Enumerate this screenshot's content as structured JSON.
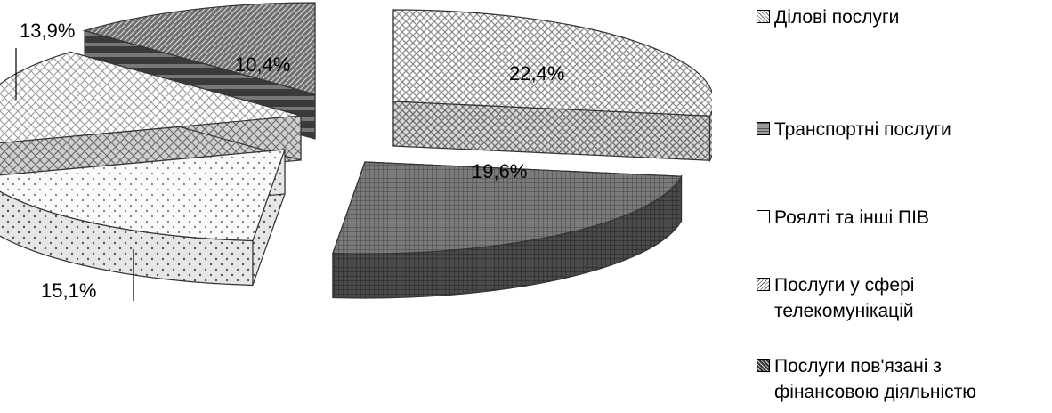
{
  "chart_data": {
    "type": "pie",
    "categories": [
      "Ділові послуги",
      "Транспортні послуги",
      "Роялті та інші ПІВ",
      "Послуги у сфері телекомунікацій",
      "Послуги пов'язані з фінансовою діяльністю"
    ],
    "values": [
      22.4,
      19.6,
      15.1,
      13.9,
      10.4
    ],
    "labels": [
      "22,4%",
      "19,6%",
      "15,1%",
      "13,9%",
      "10,4%"
    ],
    "legend_position": "right",
    "style": "exploded 3D pie, grayscale patterns"
  },
  "legend": [
    {
      "label": "Ділові послуги",
      "pattern": "crosshatch"
    },
    {
      "label": "Транспортні послуги",
      "pattern": "dark-grid"
    },
    {
      "label": "Роялті та інші ПІВ",
      "pattern": "dots"
    },
    {
      "label": "Послуги у сфері телекомунікацій",
      "pattern": "wave"
    },
    {
      "label": "Послуги пов'язані з фінансовою діяльністю",
      "pattern": "diagonal"
    }
  ]
}
